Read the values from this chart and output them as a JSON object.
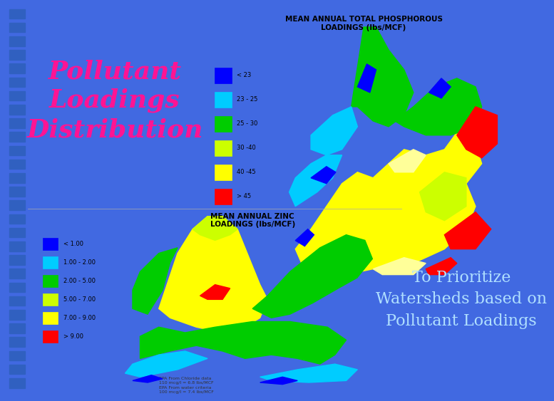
{
  "bg_color": "#4169E1",
  "left_strip_color": "#00008B",
  "left_strip_sq_color": "#3060C0",
  "top_left_box": {
    "color": "#00008B",
    "title_lines": [
      "Pollutant",
      "Loadings",
      "Distribution"
    ],
    "title_color": "#FF1493",
    "title_fontsize": 26,
    "title_fontstyle": "italic",
    "title_fontweight": "bold"
  },
  "bottom_right_box": {
    "color": "#3366FF",
    "text_lines": [
      "To Prioritize",
      "Watersheds based on",
      "Pollutant Loadings"
    ],
    "text_color": "#B0E0FF",
    "text_fontsize": 16,
    "text_fontstyle": "normal"
  },
  "phosphorous_map": {
    "title": "MEAN ANNUAL TOTAL PHOSPHOROUS\nLOADINGS (lbs/MCF)",
    "title_fontsize": 7.5,
    "bg": "#FFFFFF",
    "border_color": "#AAAAAA",
    "legend": [
      {
        "label": "< 23",
        "color": "#0000FF"
      },
      {
        "label": "23 - 25",
        "color": "#00CCFF"
      },
      {
        "label": "25 - 30",
        "color": "#00CC00"
      },
      {
        "label": "30 -40",
        "color": "#CCFF00"
      },
      {
        "label": "40 -45",
        "color": "#FFFF00"
      },
      {
        "label": "> 45",
        "color": "#FF0000"
      }
    ]
  },
  "zinc_map": {
    "title": "MEAN ANNUAL ZINC\nLOADINGS (lbs/MCF)",
    "title_fontsize": 7.5,
    "bg": "#FFFFFF",
    "border_color": "#AAAAAA",
    "legend": [
      {
        "label": "< 1.00",
        "color": "#0000FF"
      },
      {
        "label": "1.00 - 2.00",
        "color": "#00CCFF"
      },
      {
        "label": "2.00 - 5.00",
        "color": "#00CC00"
      },
      {
        "label": "5.00 - 7.00",
        "color": "#CCFF00"
      },
      {
        "label": "7.00 - 9.00",
        "color": "#FFFF00"
      },
      {
        "label": "> 9.00",
        "color": "#FF0000"
      }
    ],
    "footnote1": "EPA From Chloride data\n110 mcg/l = 6.8 lbs/MCF",
    "footnote2": "EPA From water criteria\n100 mcg/l = 7.4 lbs/MCF"
  }
}
